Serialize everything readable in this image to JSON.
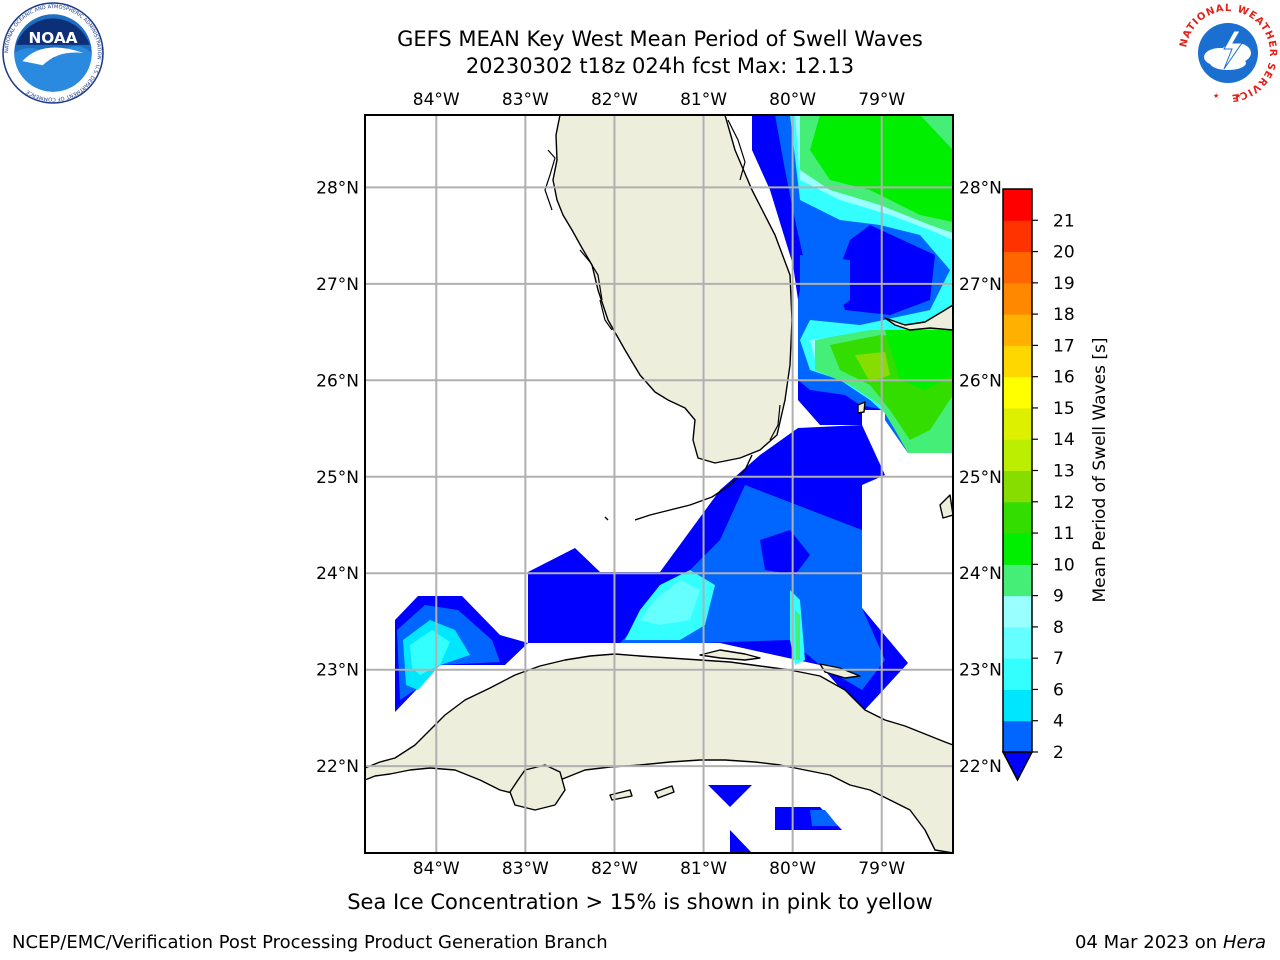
{
  "title": {
    "line1": "GEFS MEAN Key West Mean Period of Swell Waves",
    "line2": "20230302 t18z 024h fcst   Max: 12.13"
  },
  "logos": {
    "left": "noaa-logo",
    "right": "national-weather-service-logo",
    "noaa_text": "NOAA",
    "noaa_ring": "NATIONAL OCEANIC AND ATMOSPHERIC ADMINISTRATION · U.S. DEPARTMENT OF COMMERCE",
    "nws_ring": "NATIONAL WEATHER SERVICE"
  },
  "map": {
    "lon_labels": [
      "84°W",
      "83°W",
      "82°W",
      "81°W",
      "80°W",
      "79°W"
    ],
    "lat_labels": [
      "28°N",
      "27°N",
      "26°N",
      "25°N",
      "24°N",
      "23°N",
      "22°N"
    ],
    "lon_values": [
      -84,
      -83,
      -82,
      -81,
      -80,
      -79
    ],
    "lat_values": [
      28,
      27,
      26,
      25,
      24,
      23,
      22
    ],
    "extent": {
      "lon": [
        -84.8,
        -78.2
      ],
      "lat": [
        21.1,
        28.75
      ]
    },
    "grid": true,
    "land_color": "#eeeedd",
    "ocean_color": "#ffffff"
  },
  "colorbar": {
    "label": "Mean Period of Swell Waves [s]",
    "ticks": [
      "2",
      "4",
      "6",
      "7",
      "8",
      "9",
      "10",
      "11",
      "12",
      "13",
      "14",
      "15",
      "16",
      "17",
      "18",
      "19",
      "20",
      "21"
    ],
    "colors": [
      "#0066ff",
      "#00e6ff",
      "#33ffff",
      "#66ffff",
      "#99ffff",
      "#44ee77",
      "#00ee00",
      "#33dd00",
      "#88dd00",
      "#bbee00",
      "#ddf000",
      "#ffff00",
      "#ffd700",
      "#ffb000",
      "#ff8800",
      "#ff6600",
      "#ff3300",
      "#ff0000"
    ],
    "under_color": "#0000ff",
    "extend": "min"
  },
  "footer": {
    "note": "Sea Ice Concentration > 15% is shown in pink to yellow",
    "credit": "NCEP/EMC/Verification Post Processing Product Generation Branch",
    "date": "04 Mar 2023 on",
    "host": "Hera"
  }
}
